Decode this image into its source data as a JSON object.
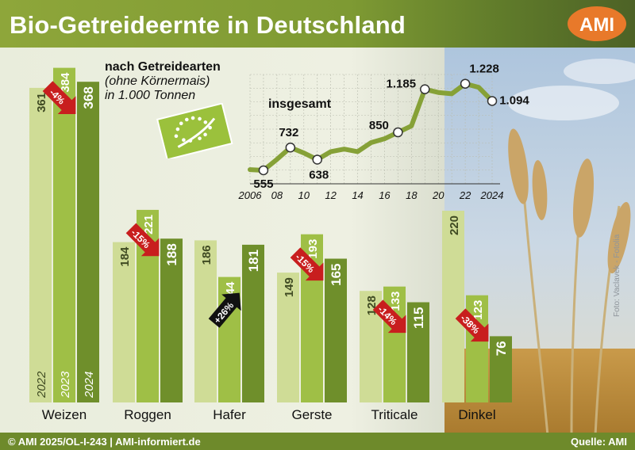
{
  "title": "Bio-Getreideernte in Deutschland",
  "logo_text": "AMI",
  "footer": {
    "left": "© AMI 2025/OL-I-243 | AMI-informiert.de",
    "right": "Quelle: AMI"
  },
  "photo_credit": "Foto: Vaclavek - Fotolia",
  "colors": {
    "y2022": "#cfdc96",
    "y2023": "#9fbf46",
    "y2024": "#6f8f2b",
    "arrow_down": "#c81e1e",
    "arrow_up": "#111111",
    "header": "#86a137",
    "line": "#86a137"
  },
  "chart_data": [
    {
      "type": "bar",
      "title": "Bio-Getreideernte in Deutschland",
      "categories": [
        "Weizen",
        "Roggen",
        "Hafer",
        "Gerste",
        "Triticale",
        "Dinkel"
      ],
      "series": [
        {
          "name": "2022",
          "values": [
            361,
            184,
            186,
            149,
            128,
            220
          ]
        },
        {
          "name": "2023",
          "values": [
            384,
            221,
            144,
            193,
            133,
            123
          ]
        },
        {
          "name": "2024",
          "values": [
            368,
            188,
            181,
            165,
            115,
            76
          ]
        }
      ],
      "change_labels": [
        "-4%",
        "-15%",
        "+26%",
        "-15%",
        "-14%",
        "-38%"
      ],
      "year_labels": [
        "2022",
        "2023",
        "2024"
      ],
      "ylim": [
        0,
        400
      ],
      "grid": false
    },
    {
      "type": "line",
      "subtitle": [
        "nach Getreidearten",
        "(ohne Körnermais)",
        "in 1.000 Tonnen"
      ],
      "series_label": "insgesamt",
      "x_ticks": [
        "2006",
        "08",
        "10",
        "12",
        "14",
        "16",
        "18",
        "20",
        "22",
        "2024"
      ],
      "x": [
        2006,
        2007,
        2008,
        2009,
        2010,
        2011,
        2012,
        2013,
        2014,
        2015,
        2016,
        2017,
        2018,
        2019,
        2020,
        2021,
        2022,
        2023,
        2024
      ],
      "y": [
        560,
        555,
        640,
        732,
        690,
        638,
        700,
        720,
        700,
        770,
        800,
        850,
        900,
        1185,
        1160,
        1150,
        1228,
        1200,
        1094
      ],
      "labeled_points": [
        {
          "x": 2007,
          "y": 555,
          "label": "555"
        },
        {
          "x": 2009,
          "y": 732,
          "label": "732"
        },
        {
          "x": 2011,
          "y": 638,
          "label": "638"
        },
        {
          "x": 2017,
          "y": 850,
          "label": "850"
        },
        {
          "x": 2019,
          "y": 1185,
          "label": "1.185"
        },
        {
          "x": 2022,
          "y": 1228,
          "label": "1.228"
        },
        {
          "x": 2024,
          "y": 1094,
          "label": "1.094"
        }
      ],
      "xlim": [
        2006,
        2024
      ],
      "ylim": [
        450,
        1300
      ],
      "grid": true
    }
  ]
}
